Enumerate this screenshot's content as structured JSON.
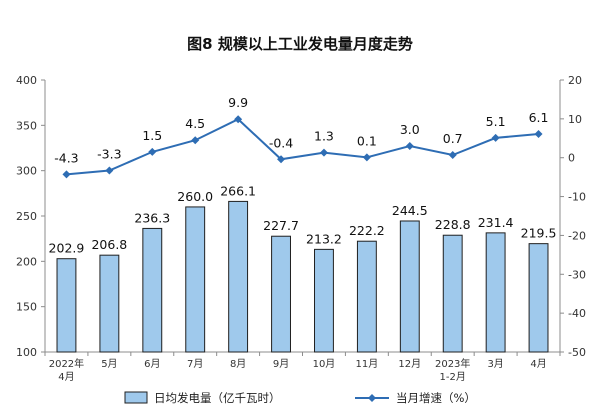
{
  "chart_data": {
    "type": "bar",
    "title": "图8  规模以上工业发电量月度走势",
    "categories": [
      [
        "2022年",
        "4月"
      ],
      [
        "5月"
      ],
      [
        "6月"
      ],
      [
        "7月"
      ],
      [
        "8月"
      ],
      [
        "9月"
      ],
      [
        "10月"
      ],
      [
        "11月"
      ],
      [
        "12月"
      ],
      [
        "2023年",
        "1-2月"
      ],
      [
        "3月"
      ],
      [
        "4月"
      ]
    ],
    "series": [
      {
        "name": "日均发电量（亿千瓦时）",
        "type": "bar",
        "axis": "left",
        "color": "#9fc9ec",
        "values": [
          202.9,
          206.8,
          236.3,
          260.0,
          266.1,
          227.7,
          213.2,
          222.2,
          244.5,
          228.8,
          231.4,
          219.5
        ],
        "labels": [
          "202.9",
          "206.8",
          "236.3",
          "260.0",
          "266.1",
          "227.7",
          "213.2",
          "222.2",
          "244.5",
          "228.8",
          "231.4",
          "219.5"
        ]
      },
      {
        "name": "当月增速（%）",
        "type": "line",
        "axis": "right",
        "color": "#2e6db4",
        "values": [
          -4.3,
          -3.3,
          1.5,
          4.5,
          9.9,
          -0.4,
          1.3,
          0.1,
          3.0,
          0.7,
          5.1,
          6.1
        ],
        "labels": [
          "-4.3",
          "-3.3",
          "1.5",
          "4.5",
          "9.9",
          "-0.4",
          "1.3",
          "0.1",
          "3.0",
          "0.7",
          "5.1",
          "6.1"
        ]
      }
    ],
    "ylim_left": [
      100,
      400
    ],
    "yticks_left": [
      "400",
      "350",
      "300",
      "250",
      "200",
      "150",
      "100"
    ],
    "ylim_right": [
      -50,
      20
    ],
    "yticks_right": [
      "20",
      "10",
      "0",
      "-10",
      "-20",
      "-30",
      "-40",
      "-50"
    ],
    "grid": false,
    "legend": "bottom"
  }
}
